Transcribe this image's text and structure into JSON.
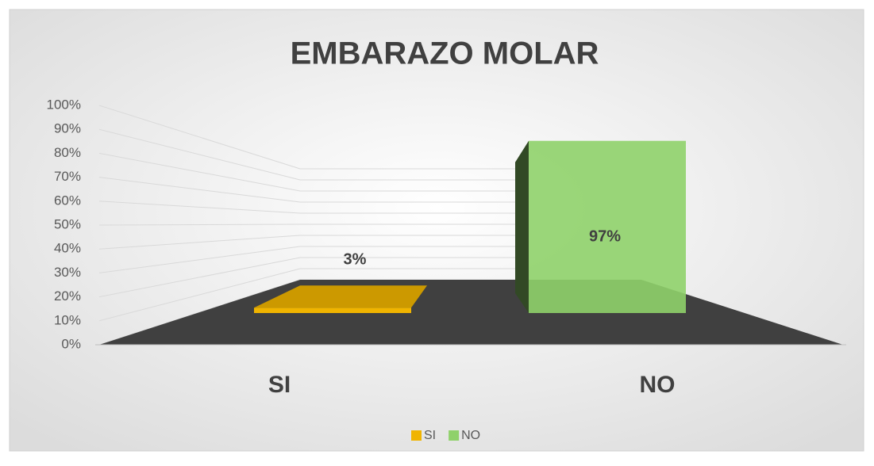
{
  "chart_data": {
    "type": "bar3d",
    "title": "EMBARAZO MOLAR",
    "categories": [
      "SI",
      "NO"
    ],
    "series": [
      {
        "name": "SI",
        "color": "#f0b400",
        "values": [
          3,
          null
        ],
        "value_labels": [
          "3%",
          null
        ]
      },
      {
        "name": "NO",
        "color": "#8fd16a",
        "values": [
          null,
          97
        ],
        "value_labels": [
          null,
          "97%"
        ]
      }
    ],
    "ylim": [
      0,
      100
    ],
    "yticks": [
      {
        "value": 0,
        "label": "0%"
      },
      {
        "value": 10,
        "label": "10%"
      },
      {
        "value": 20,
        "label": "20%"
      },
      {
        "value": 30,
        "label": "30%"
      },
      {
        "value": 40,
        "label": "40%"
      },
      {
        "value": 50,
        "label": "50%"
      },
      {
        "value": 60,
        "label": "60%"
      },
      {
        "value": 70,
        "label": "70%"
      },
      {
        "value": 80,
        "label": "80%"
      },
      {
        "value": 90,
        "label": "90%"
      },
      {
        "value": 100,
        "label": "100%"
      }
    ],
    "grid": true,
    "legend": "bottom"
  }
}
